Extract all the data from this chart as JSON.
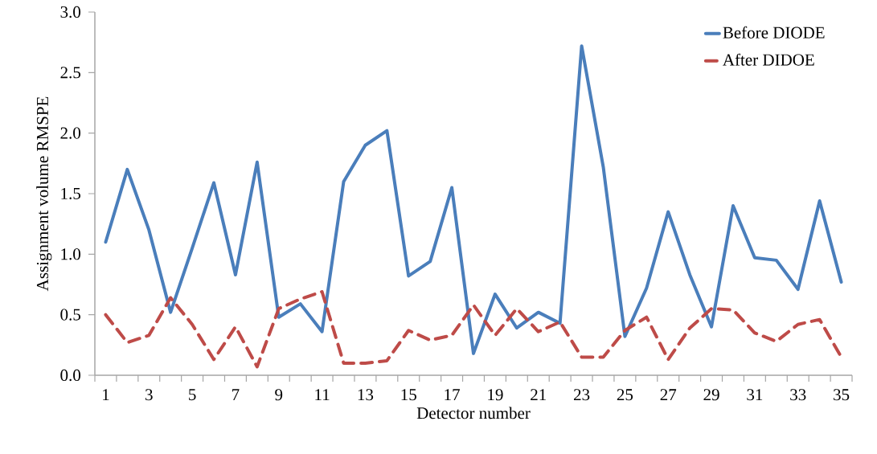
{
  "chart_data": {
    "type": "line",
    "xlabel": "Detector number",
    "ylabel": "Assignment volume RMSPE",
    "categories": [
      "1",
      null,
      "3",
      null,
      "5",
      null,
      "7",
      null,
      "9",
      null,
      "11",
      null,
      "13",
      null,
      "15",
      null,
      "17",
      null,
      "19",
      null,
      "21",
      null,
      "23",
      null,
      "25",
      null,
      "27",
      null,
      "29",
      null,
      "31",
      null,
      "33",
      null,
      "35"
    ],
    "series": [
      {
        "name": "Before DIODE",
        "color": "#4a7ebb",
        "line_style": "solid",
        "values": [
          1.1,
          1.7,
          1.2,
          0.52,
          1.05,
          1.59,
          0.83,
          1.76,
          0.48,
          0.59,
          0.36,
          1.6,
          1.9,
          2.02,
          0.82,
          0.94,
          1.55,
          0.18,
          0.67,
          0.39,
          0.52,
          0.43,
          2.72,
          1.72,
          0.32,
          0.72,
          1.35,
          0.83,
          0.4,
          1.4,
          0.97,
          0.95,
          0.71,
          1.44,
          0.77
        ]
      },
      {
        "name": "After DIDOE",
        "color": "#be4b48",
        "line_style": "dashed",
        "values": [
          0.5,
          0.27,
          0.33,
          0.64,
          0.42,
          0.13,
          0.4,
          0.07,
          0.55,
          0.63,
          0.69,
          0.1,
          0.1,
          0.12,
          0.37,
          0.29,
          0.33,
          0.58,
          0.33,
          0.55,
          0.36,
          0.44,
          0.15,
          0.15,
          0.37,
          0.48,
          0.13,
          0.39,
          0.55,
          0.54,
          0.35,
          0.28,
          0.42,
          0.46,
          0.15
        ]
      }
    ],
    "ylim": [
      0,
      3
    ],
    "yticks": [
      {
        "value": 0,
        "label": "0.0"
      },
      {
        "value": 0.5,
        "label": "0.5"
      },
      {
        "value": 1,
        "label": "1.0"
      },
      {
        "value": 1.5,
        "label": "1.5"
      },
      {
        "value": 2,
        "label": "2.0"
      },
      {
        "value": 2.5,
        "label": "2.5"
      },
      {
        "value": 3,
        "label": "3.0"
      }
    ],
    "legend": "top right",
    "marker": "none",
    "grid": false
  }
}
